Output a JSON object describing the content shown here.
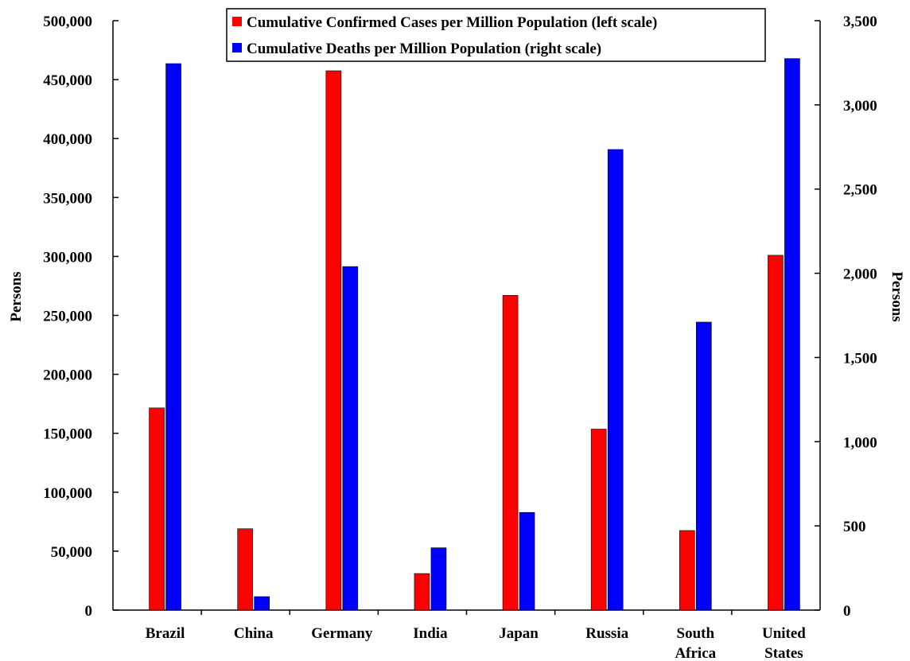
{
  "chart_data": {
    "type": "bar",
    "title": "",
    "categories": [
      [
        "Brazil"
      ],
      [
        "China"
      ],
      [
        "Germany"
      ],
      [
        "India"
      ],
      [
        "Japan"
      ],
      [
        "Russia"
      ],
      [
        "South",
        "Africa"
      ],
      [
        "United",
        "States"
      ]
    ],
    "series": [
      {
        "name": "Cumulative Confirmed Cases per Million Population (left scale)",
        "axis": "left",
        "color": "#ff0000",
        "values": [
          171500,
          69000,
          457500,
          31000,
          267000,
          153500,
          67500,
          301000
        ]
      },
      {
        "name": "Cumulative Deaths per Million Population (right scale)",
        "axis": "right",
        "color": "#0000ff",
        "values": [
          3245,
          80,
          2040,
          370,
          580,
          2735,
          1710,
          3275
        ]
      }
    ],
    "left_axis": {
      "label": "Persons",
      "min": 0,
      "max": 500000,
      "step": 50000,
      "tick_labels": [
        "0",
        "50,000",
        "100,000",
        "150,000",
        "200,000",
        "250,000",
        "300,000",
        "350,000",
        "400,000",
        "450,000",
        "500,000"
      ]
    },
    "right_axis": {
      "label": "Persons",
      "min": 0,
      "max": 3500,
      "step": 500,
      "tick_labels": [
        "0",
        "500",
        "1,000",
        "1,500",
        "2,000",
        "2,500",
        "3,000",
        "3,500"
      ]
    },
    "grid": false,
    "legend": "top-center"
  }
}
